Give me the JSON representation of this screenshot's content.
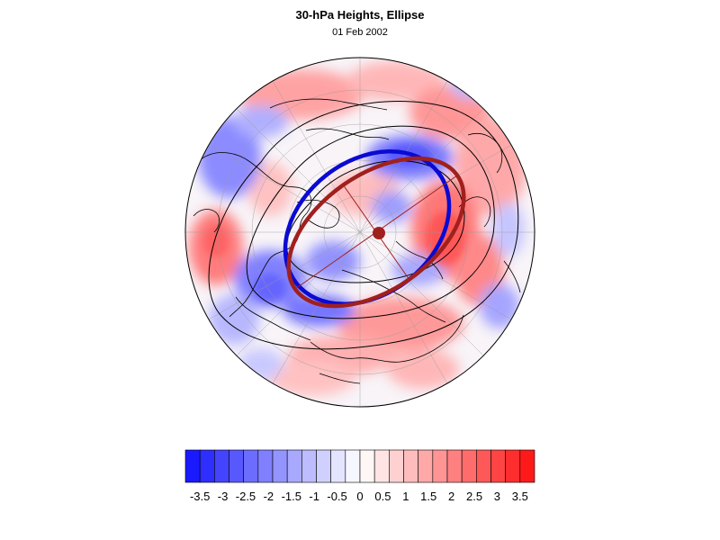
{
  "title": "30-hPa Heights, Ellipse",
  "subtitle": "01 Feb 2002",
  "colors": {
    "ellipse_observed": "#0a0ad2",
    "ellipse_fit": "#a0201e",
    "center_marker": "#a0201e",
    "contour": "#000000"
  },
  "map": {
    "projection": "north-polar-stereographic",
    "graticule": true,
    "coastlines": true
  },
  "colorbar": {
    "levels": [
      "-3.5",
      "-3",
      "-2.5",
      "-2",
      "-1.5",
      "-1",
      "-0.5",
      "0",
      "0.5",
      "1",
      "1.5",
      "2",
      "2.5",
      "3",
      "3.5"
    ],
    "segments": [
      "#1a1aff",
      "#2e2eff",
      "#4444ff",
      "#5858ff",
      "#6c6cff",
      "#8080ff",
      "#9494ff",
      "#a8a8ff",
      "#bcbcff",
      "#d0d0ff",
      "#e4e4ff",
      "#f6f6ff",
      "#fff6f6",
      "#ffe4e4",
      "#ffd0d0",
      "#ffbcbc",
      "#ffa8a8",
      "#ff9494",
      "#ff8080",
      "#ff6c6c",
      "#ff5858",
      "#ff4444",
      "#ff2e2e",
      "#ff1a1a"
    ]
  }
}
